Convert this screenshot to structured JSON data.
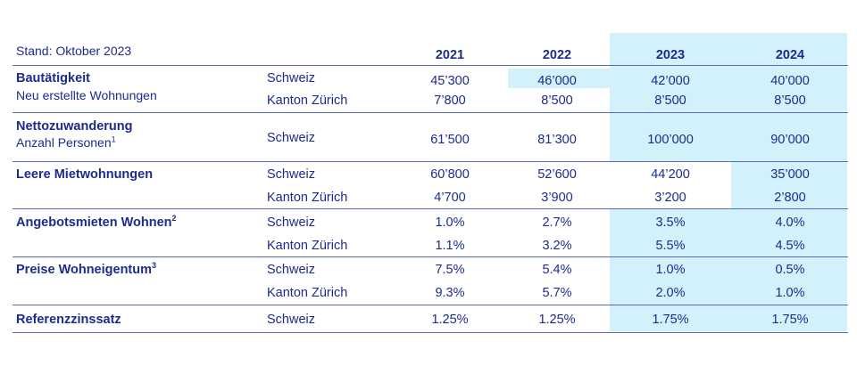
{
  "stand": "Stand: Oktober 2023",
  "chart_data": {
    "type": "table",
    "columns": [
      "2021",
      "2022",
      "2023",
      "2024"
    ],
    "rows": [
      {
        "label": "Bautätigkeit",
        "sub": "Neu erstellte Wohnungen",
        "region": "Schweiz",
        "values": [
          "45’300",
          "46’000",
          "42’000",
          "40’000"
        ]
      },
      {
        "label": "",
        "sub": "",
        "region": "Kanton Zürich",
        "values": [
          "7’800",
          "8’500",
          "8’500",
          "8’500"
        ]
      },
      {
        "label": "Nettozuwanderung",
        "sub": "Anzahl Personen",
        "sub_sup": "1",
        "region": "Schweiz",
        "values": [
          "61’500",
          "81’300",
          "100’000",
          "90’000"
        ]
      },
      {
        "label": "Leere Mietwohnungen",
        "sub": "",
        "region": "Schweiz",
        "values": [
          "60’800",
          "52’600",
          "44’200",
          "35’000"
        ]
      },
      {
        "label": "",
        "sub": "",
        "region": "Kanton Zürich",
        "values": [
          "4’700",
          "3’900",
          "3’200",
          "2’800"
        ]
      },
      {
        "label": "Angebotsmieten Wohnen",
        "label_sup": "2",
        "sub": "",
        "region": "Schweiz",
        "values": [
          "1.0%",
          "2.7%",
          "3.5%",
          "4.0%"
        ]
      },
      {
        "label": "",
        "sub": "",
        "region": "Kanton Zürich",
        "values": [
          "1.1%",
          "3.2%",
          "5.5%",
          "4.5%"
        ]
      },
      {
        "label": "Preise Wohneigentum",
        "label_sup": "3",
        "sub": "",
        "region": "Schweiz",
        "values": [
          "7.5%",
          "5.4%",
          "1.0%",
          "0.5%"
        ]
      },
      {
        "label": "",
        "sub": "",
        "region": "Kanton Zürich",
        "values": [
          "9.3%",
          "5.7%",
          "2.0%",
          "1.0%"
        ]
      },
      {
        "label": "Referenzzinssatz",
        "sub": "",
        "region": "Schweiz",
        "values": [
          "1.25%",
          "1.25%",
          "1.75%",
          "1.75%"
        ]
      }
    ],
    "highlight_color": "#d2f1fb",
    "text_color": "#1c2b8c"
  }
}
